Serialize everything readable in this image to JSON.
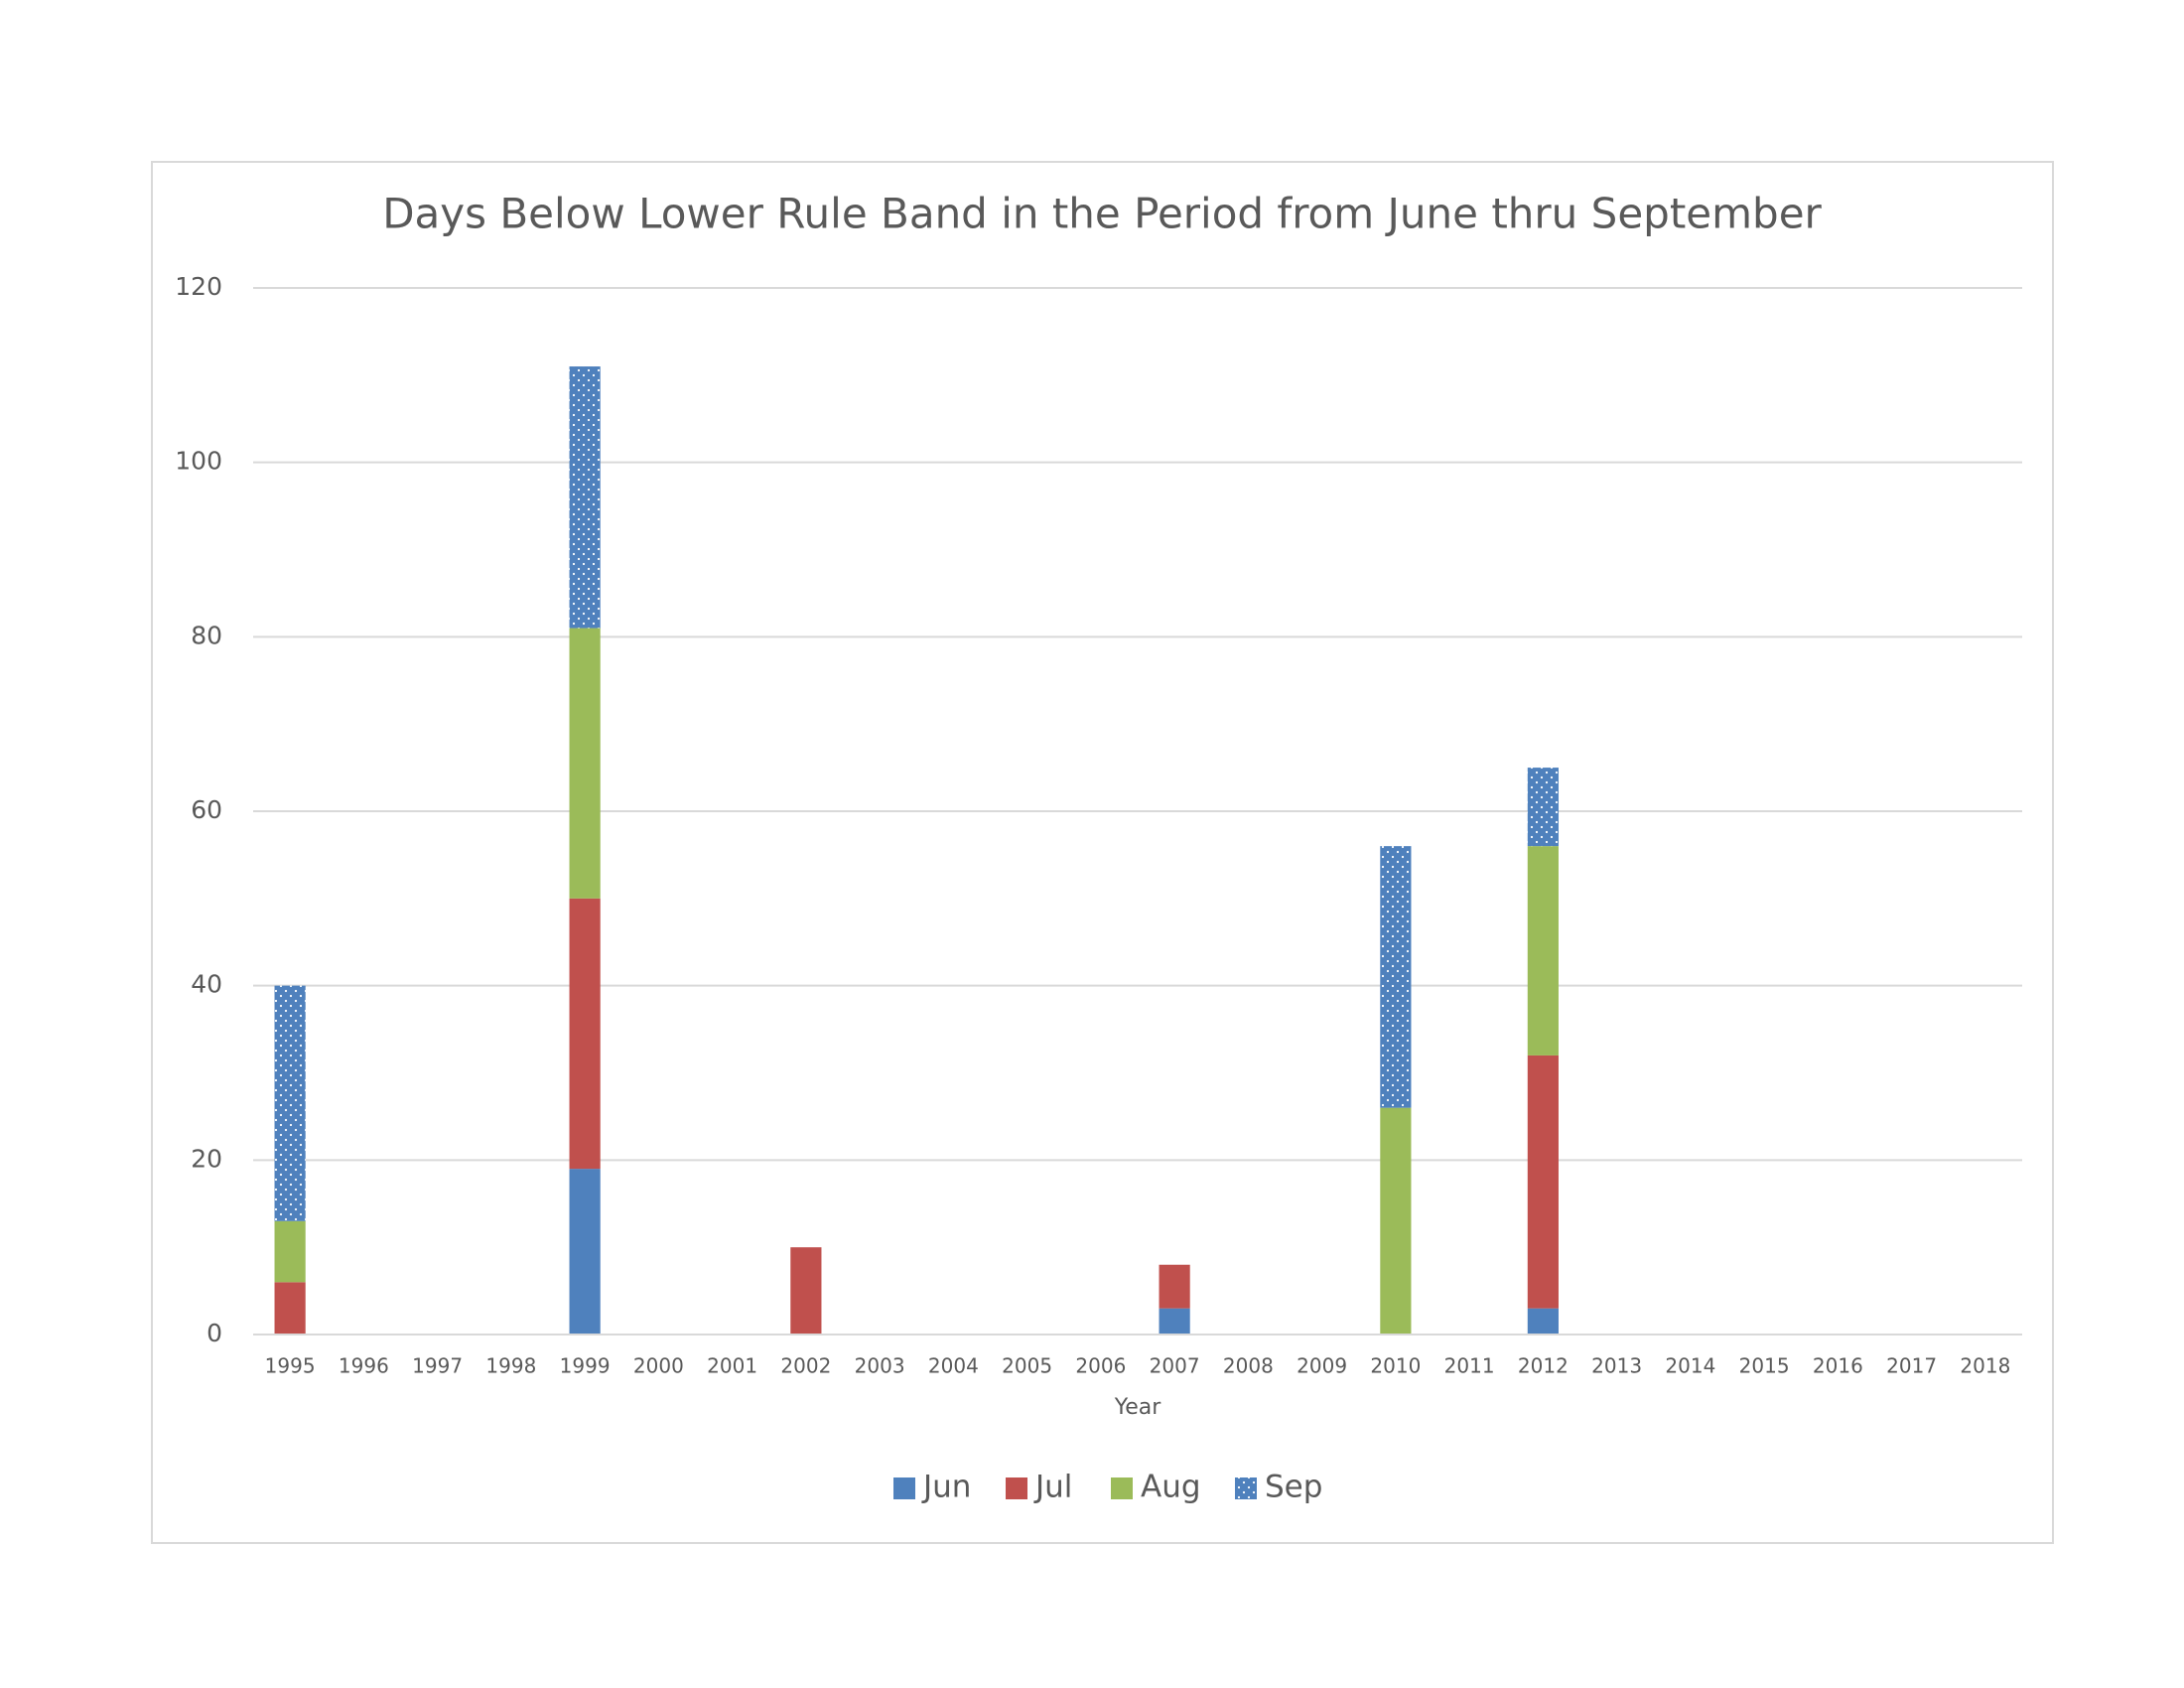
{
  "chart_data": {
    "type": "bar",
    "stacked": true,
    "title": "Days Below Lower Rule Band in the Period from June thru September",
    "x_label": "Year",
    "categories": [
      "1995",
      "1996",
      "1997",
      "1998",
      "1999",
      "2000",
      "2001",
      "2002",
      "2003",
      "2004",
      "2005",
      "2006",
      "2007",
      "2008",
      "2009",
      "2010",
      "2011",
      "2012",
      "2013",
      "2014",
      "2015",
      "2016",
      "2017",
      "2018"
    ],
    "series": [
      {
        "name": "Jun",
        "color": "#4f81bd",
        "values": [
          0,
          0,
          0,
          0,
          19,
          0,
          0,
          0,
          0,
          0,
          0,
          0,
          3,
          0,
          0,
          0,
          0,
          3,
          0,
          0,
          0,
          0,
          0,
          0
        ]
      },
      {
        "name": "Jul",
        "color": "#c0504d",
        "values": [
          6,
          0,
          0,
          0,
          31,
          0,
          0,
          10,
          0,
          0,
          0,
          0,
          5,
          0,
          0,
          0,
          0,
          29,
          0,
          0,
          0,
          0,
          0,
          0
        ]
      },
      {
        "name": "Aug",
        "color": "#9bbb59",
        "values": [
          7,
          0,
          0,
          0,
          31,
          0,
          0,
          0,
          0,
          0,
          0,
          0,
          0,
          0,
          0,
          26,
          0,
          24,
          0,
          0,
          0,
          0,
          0,
          0
        ]
      },
      {
        "name": "Sep",
        "color": "#4f81bd",
        "pattern": "dots",
        "values": [
          27,
          0,
          0,
          0,
          30,
          0,
          0,
          0,
          0,
          0,
          0,
          0,
          0,
          0,
          0,
          30,
          0,
          9,
          0,
          0,
          0,
          0,
          0,
          0
        ]
      }
    ],
    "ylim": [
      0,
      120
    ],
    "yticks": [
      0,
      20,
      40,
      60,
      80,
      100,
      120
    ],
    "grid": true,
    "legend": "bottom"
  }
}
